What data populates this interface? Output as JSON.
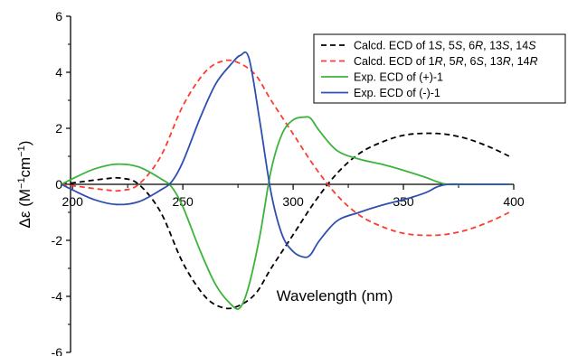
{
  "chart_data": {
    "type": "line",
    "title": "",
    "xlabel": "Wavelength (nm)",
    "ylabel_parts": [
      "Δε (M",
      "−1",
      "cm",
      "−1",
      ")"
    ],
    "xlim": [
      195,
      400
    ],
    "ylim": [
      -6,
      6
    ],
    "xticks": [
      200,
      250,
      300,
      350,
      400
    ],
    "yticks": [
      -6,
      -4,
      -2,
      0,
      2,
      4,
      6
    ],
    "grid": false,
    "legend_position": "top-right",
    "series": [
      {
        "name": "Calcd. ECD of 1S, 5S, 6R, 13S, 14S",
        "legend_parts": [
          [
            "Calcd. ECD of 1",
            false
          ],
          [
            "S",
            true
          ],
          [
            ", 5",
            false
          ],
          [
            "S",
            true
          ],
          [
            ", 6",
            false
          ],
          [
            "R",
            true
          ],
          [
            ", 13",
            false
          ],
          [
            "S",
            true
          ],
          [
            ", 14",
            false
          ],
          [
            "S",
            true
          ]
        ],
        "color": "#000000",
        "dash": "dashed",
        "x": [
          195,
          205,
          215,
          222,
          230,
          240,
          250,
          260,
          268,
          275,
          283,
          290,
          300,
          310,
          320,
          330,
          340,
          350,
          360,
          370,
          380,
          390,
          398
        ],
        "y": [
          0.0,
          0.1,
          0.2,
          0.22,
          0.0,
          -1.0,
          -2.8,
          -4.0,
          -4.4,
          -4.35,
          -3.9,
          -3.0,
          -1.8,
          -0.6,
          0.4,
          1.1,
          1.5,
          1.75,
          1.82,
          1.78,
          1.6,
          1.3,
          1.0
        ]
      },
      {
        "name": "Calcd. ECD of 1R, 5R, 6S, 13R, 14R",
        "legend_parts": [
          [
            "Calcd. ECD of 1",
            false
          ],
          [
            "R",
            true
          ],
          [
            ", 5",
            false
          ],
          [
            "R",
            true
          ],
          [
            ", 6",
            false
          ],
          [
            "S",
            true
          ],
          [
            ", 13",
            false
          ],
          [
            "R",
            true
          ],
          [
            ", 14",
            false
          ],
          [
            "R",
            true
          ]
        ],
        "color": "#ff3b30",
        "dash": "dashed",
        "x": [
          195,
          205,
          215,
          222,
          230,
          240,
          250,
          260,
          268,
          275,
          283,
          290,
          300,
          310,
          320,
          330,
          340,
          350,
          360,
          370,
          380,
          390,
          398
        ],
        "y": [
          0.0,
          -0.1,
          -0.2,
          -0.22,
          0.0,
          1.0,
          2.8,
          4.0,
          4.4,
          4.35,
          3.9,
          3.0,
          1.8,
          0.6,
          -0.4,
          -1.1,
          -1.5,
          -1.75,
          -1.82,
          -1.78,
          -1.6,
          -1.3,
          -1.0
        ]
      },
      {
        "name": "Exp. ECD of (+)-1",
        "legend_parts": [
          [
            "Exp. ECD of (+)-1",
            false
          ]
        ],
        "color": "#3cb43c",
        "dash": "solid",
        "x": [
          195,
          200,
          210,
          220,
          230,
          240,
          245,
          250,
          258,
          265,
          272,
          276,
          280,
          285,
          290,
          295,
          300,
          305,
          308,
          312,
          320,
          330,
          340,
          350,
          360,
          365,
          370,
          380,
          398
        ],
        "y": [
          0.0,
          0.2,
          0.55,
          0.72,
          0.62,
          0.2,
          -0.1,
          -0.8,
          -2.4,
          -3.6,
          -4.3,
          -4.4,
          -3.6,
          -1.8,
          0.5,
          1.8,
          2.3,
          2.4,
          2.35,
          1.9,
          1.2,
          0.9,
          0.72,
          0.5,
          0.25,
          0.1,
          0.0,
          0.0,
          0.0
        ]
      },
      {
        "name": "Exp. ECD of (-)-1",
        "legend_parts": [
          [
            "Exp. ECD of (-)-1",
            false
          ]
        ],
        "color": "#2f4fb0",
        "dash": "solid",
        "x": [
          195,
          200,
          210,
          220,
          230,
          240,
          245,
          250,
          258,
          265,
          272,
          276,
          280,
          285,
          290,
          295,
          300,
          305,
          308,
          312,
          320,
          330,
          340,
          350,
          360,
          365,
          370,
          380,
          398
        ],
        "y": [
          0.0,
          -0.2,
          -0.55,
          -0.72,
          -0.62,
          -0.2,
          0.1,
          0.8,
          2.4,
          3.6,
          4.3,
          4.6,
          4.5,
          2.2,
          -0.3,
          -1.8,
          -2.4,
          -2.6,
          -2.5,
          -2.0,
          -1.3,
          -1.0,
          -0.75,
          -0.55,
          -0.3,
          -0.1,
          0.0,
          0.0,
          0.0
        ]
      }
    ]
  }
}
